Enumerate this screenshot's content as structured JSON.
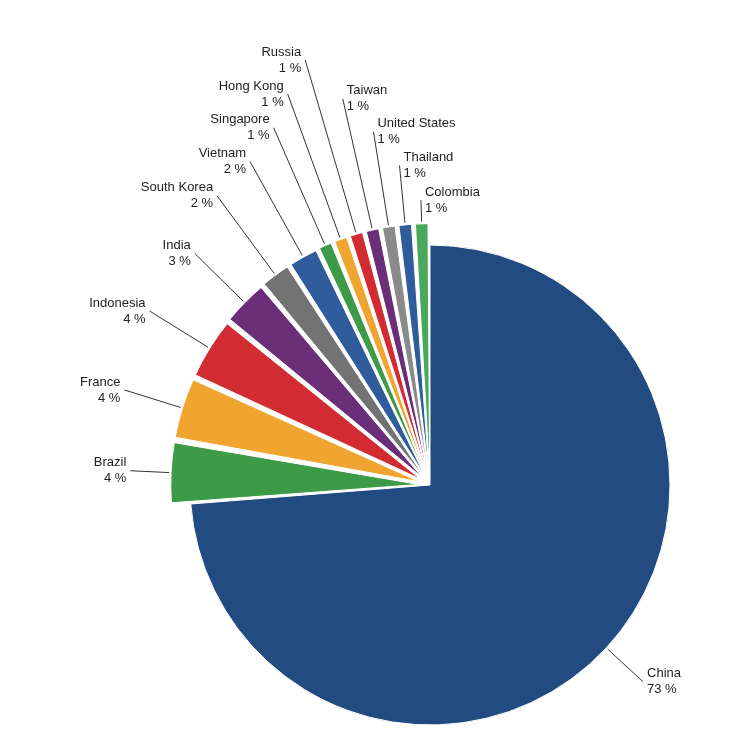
{
  "chart_data": {
    "type": "pie",
    "categories": [
      "China",
      "Brazil",
      "France",
      "Indonesia",
      "India",
      "South Korea",
      "Vietnam",
      "Singapore",
      "Hong Kong",
      "Russia",
      "Taiwan",
      "United States",
      "Thailand",
      "Colombia"
    ],
    "values": [
      73,
      4,
      4,
      4,
      3,
      2,
      2,
      1,
      1,
      1,
      1,
      1,
      1,
      1
    ],
    "value_labels": [
      "73 %",
      "4 %",
      "4 %",
      "4 %",
      "3 %",
      "2 %",
      "2 %",
      "1 %",
      "1 %",
      "1 %",
      "1 %",
      "1 %",
      "1 %",
      "1 %"
    ],
    "colors": [
      "#224b82",
      "#3d9b47",
      "#f0a531",
      "#d22b31",
      "#6b2f7a",
      "#737373",
      "#2f5c9c",
      "#3d9b47",
      "#f0a531",
      "#d22b31",
      "#6b2f7a",
      "#8a8a8a",
      "#2f5c9c",
      "#4aa85a"
    ],
    "data_labels": true
  }
}
